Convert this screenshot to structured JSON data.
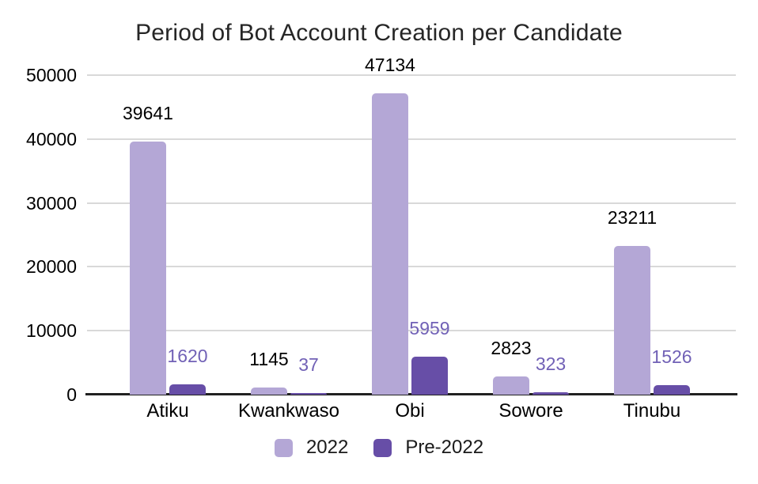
{
  "chart_data": {
    "type": "bar",
    "title": "Period of Bot Account Creation per Candidate",
    "categories": [
      "Atiku",
      "Kwankwaso",
      "Obi",
      "Sowore",
      "Tinubu"
    ],
    "series": [
      {
        "name": "2022",
        "color": "#b4a7d6",
        "label_color": "#000000",
        "values": [
          39641,
          1145,
          47134,
          2823,
          23211
        ]
      },
      {
        "name": "Pre-2022",
        "color": "#674ea7",
        "label_color": "#7161b6",
        "values": [
          1620,
          37,
          5959,
          323,
          1526
        ]
      }
    ],
    "xlabel": "",
    "ylabel": "",
    "ylim": [
      0,
      50000
    ],
    "yticks": [
      0,
      10000,
      20000,
      30000,
      40000,
      50000
    ],
    "grid": true,
    "legend_position": "bottom",
    "background_color": "#ffffff",
    "gridline_color": "#d9d9d9",
    "axis_line_color": "#212121"
  }
}
